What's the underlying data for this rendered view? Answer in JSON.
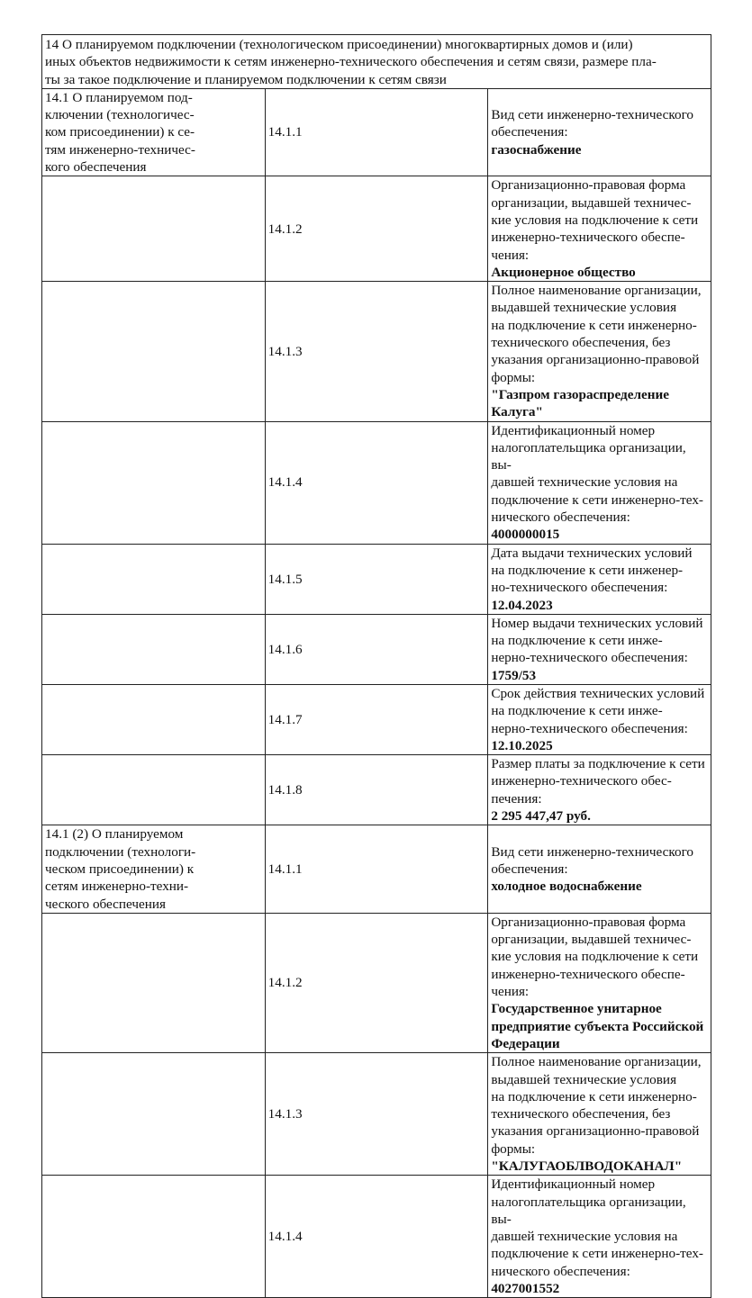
{
  "section_title": "14 О планируемом подключении (технологическом присоединении) многоквартирных домов и (или)\nиных объектов недвижимости к сетям инженерно-технического обеспечения и сетям связи, размере пла-\nты за такое подключение и планируемом подключении к сетям связи",
  "rows": [
    {
      "group": "14.1 О планируемом под-\nключении (технологичес-\nком присоединении) к се-\nтям инженерно-техничес-\nкого обеспечения",
      "code": "14.1.1",
      "label": "Вид сети инженерно-технического обеспечения:",
      "value": "газоснабжение"
    },
    {
      "group": "",
      "code": "14.1.2",
      "label": "Организационно-правовая форма организации, выдавшей техничес-\nкие условия на подключение к сети инженерно-технического обеспе-\nчения:",
      "value": "Акционерное общество"
    },
    {
      "group": "",
      "code": "14.1.3",
      "label": "Полное наименование организации, выдавшей технические условия\nна подключение к сети инженерно-технического обеспечения, без\nуказания организационно-правовой формы:",
      "value": "\"Газпром газораспределение Калуга\""
    },
    {
      "group": "",
      "code": "14.1.4",
      "label": "Идентификационный номер налогоплательщика организации, вы-\nдавшей технические условия на подключение к сети инженерно-тех-\nнического обеспечения:",
      "value": "4000000015"
    },
    {
      "group": "",
      "code": "14.1.5",
      "label": "Дата выдачи технических условий на подключение к сети инженер-\nно-технического обеспечения:",
      "value": "12.04.2023"
    },
    {
      "group": "",
      "code": "14.1.6",
      "label": "Номер выдачи технических условий на подключение к сети инже-\nнерно-технического обеспечения:",
      "value": "1759/53"
    },
    {
      "group": "",
      "code": "14.1.7",
      "label": "Срок действия технических условий на подключение к сети инже-\nнерно-технического обеспечения:",
      "value": "12.10.2025"
    },
    {
      "group": "",
      "code": "14.1.8",
      "label": "Размер платы за подключение к сети инженерно-технического обес-\nпечения:",
      "value": "2 295 447,47 руб."
    },
    {
      "group": "14.1 (2) О планируемом\nподключении (технологи-\nческом присоединении) к\nсетям инженерно-техни-\nческого обеспечения",
      "code": "14.1.1",
      "label": "Вид сети инженерно-технического обеспечения:",
      "value": "холодное водоснабжение"
    },
    {
      "group": "",
      "code": "14.1.2",
      "label": "Организационно-правовая форма организации, выдавшей техничес-\nкие условия на подключение к сети инженерно-технического обеспе-\nчения:",
      "value": "Государственное унитарное предприятие субъекта Российской\nФедерации"
    },
    {
      "group": "",
      "code": "14.1.3",
      "label": "Полное наименование организации, выдавшей технические условия\nна подключение к сети инженерно-технического обеспечения, без\nуказания организационно-правовой формы:",
      "value": "\"КАЛУГАОБЛВОДОКАНАЛ\""
    },
    {
      "group": "",
      "code": "14.1.4",
      "label": "Идентификационный номер налогоплательщика организации, вы-\nдавшей технические условия на подключение к сети инженерно-тех-\nнического обеспечения:",
      "value": "4027001552"
    }
  ]
}
